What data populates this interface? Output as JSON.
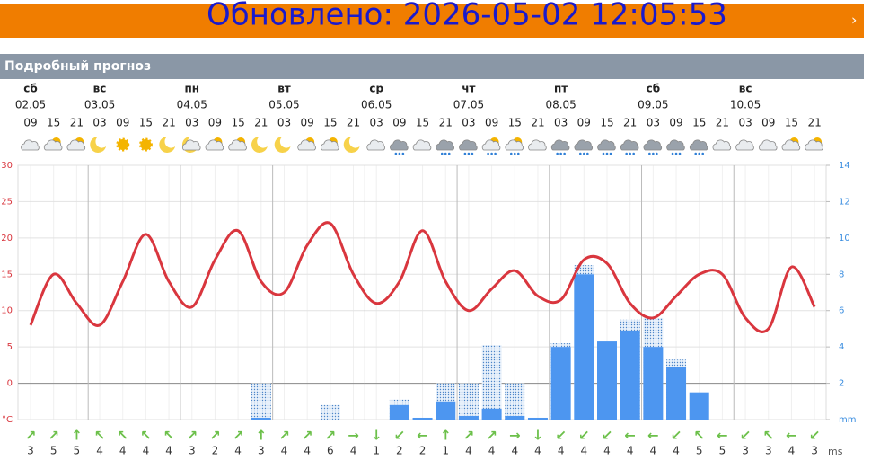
{
  "banner": {
    "updated": "Обновлено: 2026-05-02 12:05:53"
  },
  "section_title": "Подробный прогноз",
  "days": [
    {
      "name": "сб",
      "date": "02.05"
    },
    {
      "name": "вс",
      "date": "03.05"
    },
    {
      "name": "пн",
      "date": "04.05"
    },
    {
      "name": "вт",
      "date": "05.05"
    },
    {
      "name": "ср",
      "date": "06.05"
    },
    {
      "name": "чт",
      "date": "07.05"
    },
    {
      "name": "пт",
      "date": "08.05"
    },
    {
      "name": "сб",
      "date": "09.05"
    },
    {
      "name": "вс",
      "date": "10.05"
    }
  ],
  "wind": {
    "unit": "ms",
    "values": [
      3,
      5,
      5,
      4,
      4,
      4,
      4,
      3,
      2,
      4,
      3,
      4,
      4,
      6,
      4,
      1,
      2,
      2,
      1,
      4,
      4,
      4,
      4,
      4,
      4,
      4,
      4,
      4,
      4,
      5,
      5,
      3,
      3,
      4,
      3
    ],
    "arrows": [
      "↗",
      "↗",
      "↑",
      "↖",
      "↖",
      "↖",
      "↖",
      "↗",
      "↗",
      "↗",
      "↑",
      "↗",
      "↗",
      "↗",
      "→",
      "↓",
      "↙",
      "←",
      "↑",
      "↗",
      "↗",
      "→",
      "↓",
      "↙",
      "↙",
      "↙",
      "←",
      "←",
      "↙",
      "↖",
      "←",
      "↙",
      "↖",
      "←",
      "↙"
    ]
  },
  "chart_data": {
    "type": "line",
    "categories": [
      "09",
      "15",
      "21",
      "03",
      "09",
      "15",
      "21",
      "03",
      "09",
      "15",
      "21",
      "03",
      "09",
      "15",
      "21",
      "03",
      "09",
      "15",
      "21",
      "03",
      "09",
      "15",
      "21",
      "03",
      "09",
      "15",
      "21",
      "03",
      "09",
      "15",
      "21",
      "03",
      "09",
      "15",
      "21"
    ],
    "series": [
      {
        "color": "#d9363e",
        "values": [
          8,
          15,
          11,
          8,
          14,
          20.5,
          14,
          10.5,
          17,
          21,
          14,
          12.5,
          19,
          22,
          15,
          11,
          14,
          21,
          14,
          10,
          13,
          15.5,
          12,
          11.5,
          17,
          16.5,
          11,
          9,
          12,
          15,
          15,
          9,
          7.5,
          16,
          10.5
        ]
      },
      {
        "type": "bar",
        "axis": "y2",
        "color": "#4d96f0",
        "values": [
          null,
          null,
          null,
          null,
          null,
          null,
          null,
          null,
          null,
          null,
          0.1,
          null,
          null,
          null,
          null,
          null,
          0.8,
          0.1,
          1,
          0.2,
          0.6,
          0.2,
          0.1,
          4,
          8,
          4.3,
          4.9,
          4,
          2.9,
          1.5,
          null,
          null,
          null,
          null,
          null
        ]
      },
      {
        "type": "bar",
        "axis": "y2",
        "color": "#7fb0e6",
        "dotted": true,
        "values": [
          null,
          null,
          null,
          null,
          null,
          null,
          null,
          null,
          null,
          null,
          2,
          null,
          null,
          0.8,
          null,
          null,
          1.1,
          null,
          2,
          2,
          4.1,
          2,
          null,
          4.2,
          8.5,
          null,
          5.5,
          5.6,
          3.3,
          null,
          null,
          null,
          null,
          null,
          null
        ]
      }
    ],
    "ylim": [
      -5,
      30
    ],
    "yticks": [
      {
        "value": -5,
        "label": "°C"
      },
      0,
      5,
      10,
      15,
      20,
      25,
      30
    ],
    "y2lim": [
      0,
      14
    ],
    "y2ticks": [
      {
        "value": 0,
        "label": "mm"
      },
      2,
      4,
      6,
      8,
      10,
      12,
      14
    ],
    "grid": true
  }
}
